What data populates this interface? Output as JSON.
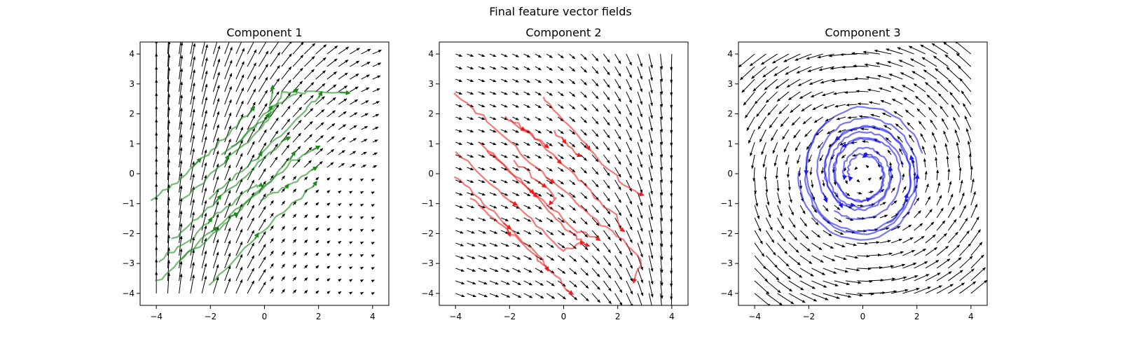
{
  "figure": {
    "suptitle": "Final feature vector fields"
  },
  "chart_data": [
    {
      "type": "quiver",
      "title": "Component 1",
      "xlim": [
        -4.6,
        4.6
      ],
      "ylim": [
        -4.4,
        4.4
      ],
      "xticks": [
        -4,
        -2,
        0,
        2,
        4
      ],
      "yticks": [
        -4,
        -3,
        -2,
        -1,
        0,
        1,
        2,
        3,
        4
      ],
      "grid": false,
      "field": {
        "type": "sheared_flow",
        "description_values": {
          "grid_range": [
            -4,
            4
          ],
          "grid_count": 20
        }
      },
      "trajectory_color": "#1a8a1a",
      "trajectories": [
        [
          [
            -4.2,
            -0.9
          ],
          [
            -3.4,
            -0.4
          ],
          [
            -2.6,
            0.3
          ],
          [
            -1.8,
            0.9
          ],
          [
            -1.0,
            1.6
          ],
          [
            -0.4,
            2.2
          ]
        ],
        [
          [
            -3.1,
            -0.9
          ],
          [
            -2.3,
            -0.3
          ],
          [
            -1.5,
            0.4
          ],
          [
            -0.6,
            1.1
          ],
          [
            0.2,
            1.8
          ],
          [
            0.3,
            2.9
          ]
        ],
        [
          [
            -3.4,
            -2.2
          ],
          [
            -2.6,
            -1.6
          ],
          [
            -1.8,
            -0.9
          ],
          [
            -0.9,
            -0.2
          ],
          [
            0.0,
            0.5
          ],
          [
            0.9,
            1.2
          ]
        ],
        [
          [
            -2.0,
            -0.8
          ],
          [
            -1.2,
            -0.2
          ],
          [
            -0.3,
            0.5
          ],
          [
            0.6,
            1.3
          ],
          [
            1.5,
            2.1
          ],
          [
            2.1,
            2.7
          ]
        ],
        [
          [
            -1.2,
            0.9
          ],
          [
            -0.4,
            1.5
          ],
          [
            0.3,
            2.1
          ],
          [
            0.7,
            2.7
          ],
          [
            1.2,
            2.8
          ]
        ],
        [
          [
            -4.0,
            -3.6
          ],
          [
            -3.2,
            -3.0
          ],
          [
            -2.3,
            -2.2
          ],
          [
            -1.4,
            -1.5
          ],
          [
            -0.5,
            -0.8
          ],
          [
            0.4,
            -0.1
          ],
          [
            1.1,
            0.7
          ]
        ],
        [
          [
            -3.2,
            -2.9
          ],
          [
            -2.4,
            -2.4
          ],
          [
            -1.5,
            -1.7
          ],
          [
            -0.7,
            -1.0
          ],
          [
            0.2,
            -0.3
          ],
          [
            1.0,
            0.4
          ],
          [
            2.0,
            0.9
          ]
        ],
        [
          [
            -2.0,
            -3.7
          ],
          [
            -1.2,
            -3.0
          ],
          [
            -0.4,
            -2.2
          ],
          [
            0.4,
            -1.5
          ],
          [
            1.2,
            -0.9
          ],
          [
            1.9,
            -0.3
          ]
        ],
        [
          [
            -0.1,
            -0.9
          ],
          [
            0.6,
            -0.5
          ],
          [
            1.3,
            -0.2
          ],
          [
            1.9,
            0.2
          ]
        ],
        [
          [
            -3.9,
            -2.9
          ],
          [
            -3.0,
            -2.4
          ],
          [
            -2.1,
            -1.6
          ],
          [
            -1.2,
            -1.0
          ],
          [
            -0.4,
            -0.4
          ],
          [
            -0.1,
            -0.4
          ]
        ],
        [
          [
            -1.6,
            0.6
          ],
          [
            -0.7,
            1.3
          ],
          [
            0.1,
            2.1
          ],
          [
            1.0,
            2.6
          ],
          [
            1.7,
            2.8
          ],
          [
            3.1,
            2.7
          ]
        ]
      ]
    },
    {
      "type": "quiver",
      "title": "Component 2",
      "xlim": [
        -4.6,
        4.6
      ],
      "ylim": [
        -4.4,
        4.4
      ],
      "xticks": [
        -4,
        -2,
        0,
        2,
        4
      ],
      "yticks": [
        -4,
        -3,
        -2,
        -1,
        0,
        1,
        2,
        3,
        4
      ],
      "grid": false,
      "field": {
        "type": "bending_flow",
        "description_values": {
          "grid_range": [
            -4,
            4
          ],
          "grid_count": 20
        }
      },
      "trajectory_color": "#ee1c1c",
      "trajectories": [
        [
          [
            -4.0,
            2.7
          ],
          [
            -3.0,
            1.9
          ],
          [
            -2.0,
            1.1
          ],
          [
            -1.0,
            0.2
          ],
          [
            0.0,
            -0.6
          ],
          [
            1.0,
            -1.4
          ],
          [
            2.0,
            -2.1
          ],
          [
            2.9,
            -2.9
          ],
          [
            2.6,
            -3.6
          ]
        ],
        [
          [
            -4.0,
            0.7
          ],
          [
            -3.0,
            -0.1
          ],
          [
            -2.0,
            -0.9
          ],
          [
            -1.0,
            -1.7
          ],
          [
            0.0,
            -2.6
          ],
          [
            0.7,
            -2.3
          ]
        ],
        [
          [
            -4.0,
            -0.1
          ],
          [
            -3.1,
            -0.8
          ],
          [
            -2.2,
            -1.6
          ],
          [
            -1.3,
            -2.4
          ],
          [
            -0.5,
            -3.2
          ],
          [
            0.3,
            -4.0
          ]
        ],
        [
          [
            -3.1,
            1.0
          ],
          [
            -2.2,
            0.3
          ],
          [
            -1.3,
            -0.5
          ],
          [
            -0.4,
            -1.2
          ],
          [
            0.5,
            -1.9
          ],
          [
            1.3,
            -2.2
          ]
        ],
        [
          [
            -2.2,
            1.9
          ],
          [
            -1.4,
            1.4
          ],
          [
            -0.6,
            0.8
          ],
          [
            0.2,
            0.1
          ],
          [
            1.0,
            -0.6
          ],
          [
            1.9,
            -1.4
          ],
          [
            2.2,
            -1.9
          ]
        ],
        [
          [
            -0.8,
            2.6
          ],
          [
            0.0,
            1.8
          ],
          [
            0.8,
            1.0
          ],
          [
            1.6,
            0.2
          ],
          [
            2.4,
            -0.5
          ],
          [
            2.9,
            -0.7
          ]
        ],
        [
          [
            -3.4,
            -0.8
          ],
          [
            -2.6,
            -1.5
          ],
          [
            -1.8,
            -2.1
          ],
          [
            -1.0,
            -2.8
          ],
          [
            -0.6,
            -3.2
          ]
        ],
        [
          [
            -2.0,
            1.8
          ],
          [
            -1.3,
            1.4
          ],
          [
            -0.6,
            0.9
          ]
        ],
        [
          [
            -0.4,
            1.4
          ],
          [
            0.1,
            1.0
          ],
          [
            0.6,
            0.6
          ]
        ],
        [
          [
            -2.8,
            0.8
          ],
          [
            -2.0,
            0.1
          ],
          [
            -1.2,
            -0.6
          ],
          [
            -0.4,
            -1.4
          ],
          [
            0.4,
            -2.1
          ],
          [
            0.9,
            -2.4
          ]
        ],
        [
          [
            -1.8,
            0.4
          ],
          [
            -1.0,
            -0.2
          ],
          [
            -0.3,
            -0.8
          ],
          [
            -0.5,
            -1.0
          ]
        ]
      ]
    },
    {
      "type": "quiver",
      "title": "Component 3",
      "xlim": [
        -4.6,
        4.6
      ],
      "ylim": [
        -4.4,
        4.4
      ],
      "xticks": [
        -4,
        -2,
        0,
        2,
        4
      ],
      "yticks": [
        -4,
        -3,
        -2,
        -1,
        0,
        1,
        2,
        3,
        4
      ],
      "grid": false,
      "field": {
        "type": "rotating_flow",
        "description_values": {
          "grid_range": [
            -4,
            4
          ],
          "grid_count": 20
        }
      },
      "trajectory_color": "#1a1aee",
      "spirals": [
        {
          "r_start": 2.3,
          "r_end": 1.9,
          "turns": 1.0,
          "phase": 0.3
        },
        {
          "r_start": 2.2,
          "r_end": 1.3,
          "turns": 1.3,
          "phase": 2.2
        },
        {
          "r_start": 1.6,
          "r_end": 0.6,
          "turns": 1.6,
          "phase": 4.0
        },
        {
          "r_start": 1.2,
          "r_end": 0.5,
          "turns": 1.4,
          "phase": 1.0
        },
        {
          "r_start": 1.9,
          "r_end": 1.0,
          "turns": 1.2,
          "phase": 5.2
        },
        {
          "r_start": 2.4,
          "r_end": 1.6,
          "turns": 1.1,
          "phase": 3.1
        },
        {
          "r_start": 1.5,
          "r_end": 0.7,
          "turns": 1.5,
          "phase": 0.2
        }
      ]
    }
  ]
}
